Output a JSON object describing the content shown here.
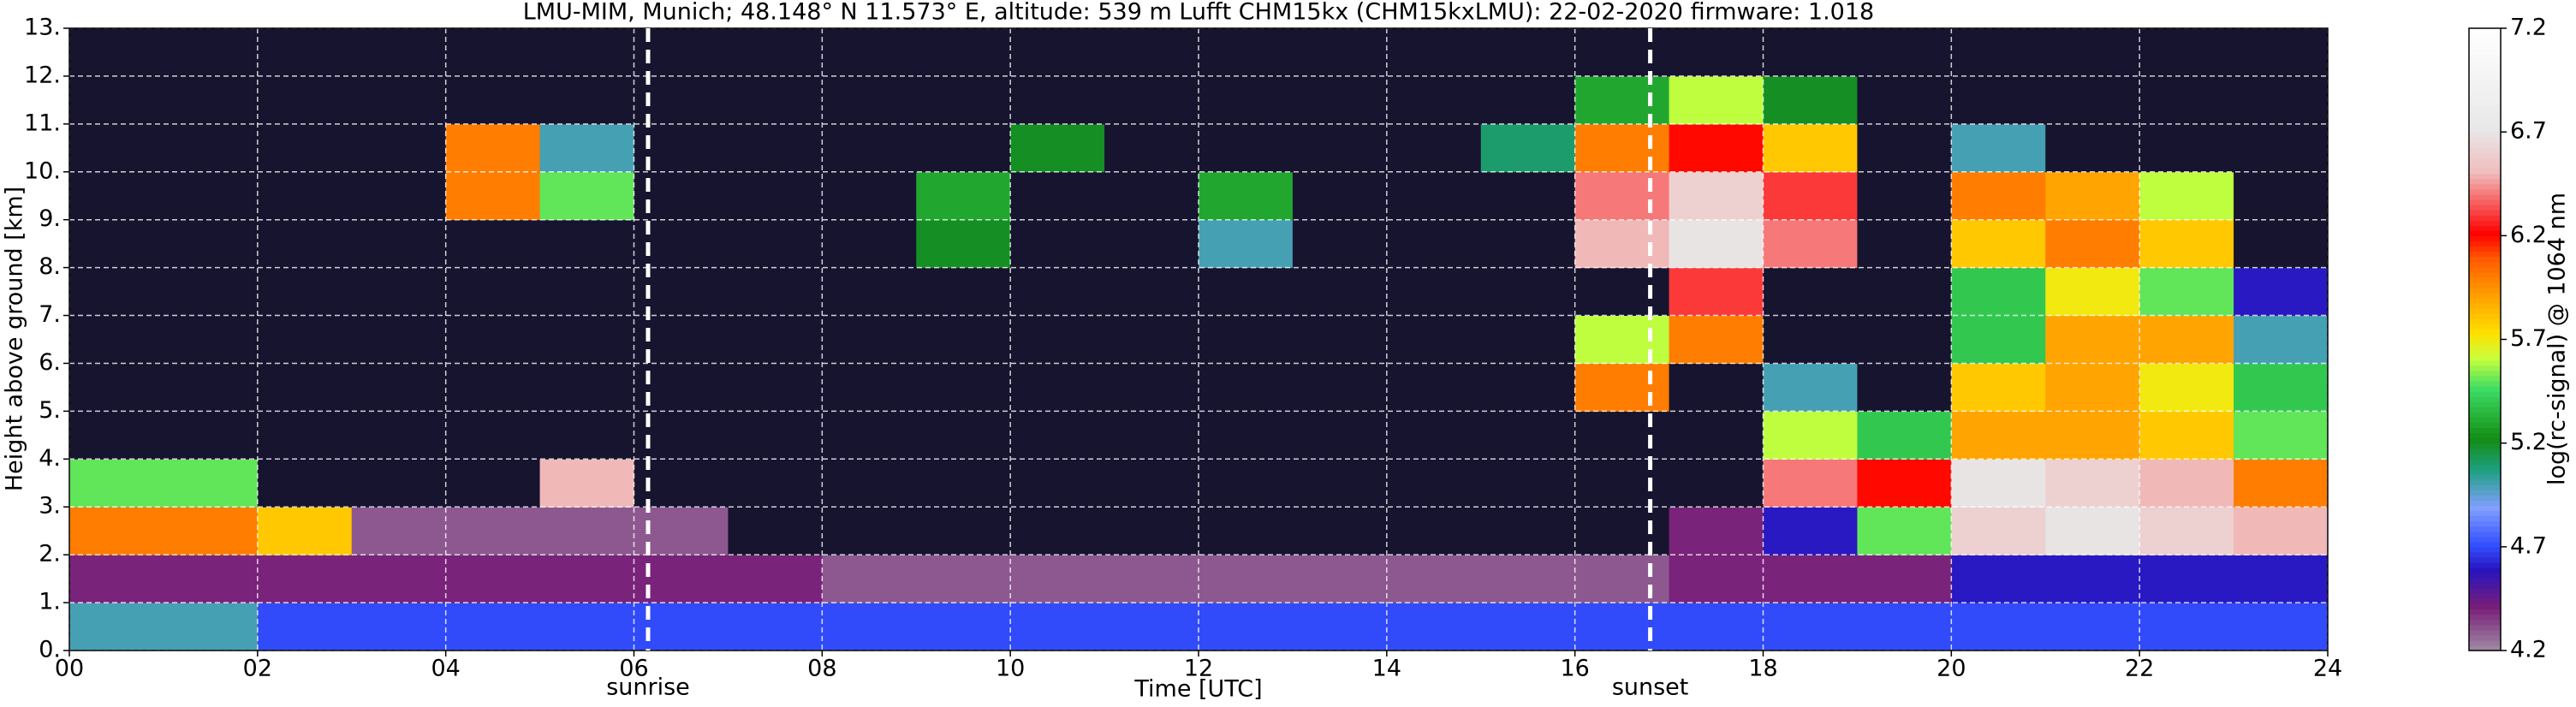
{
  "chart_data": {
    "type": "heatmap",
    "title": "LMU-MIM, Munich; 48.148° N 11.573° E, altitude: 539 m    Lufft CHM15kx (CHM15kxLMU): 22-02-2020    firmware: 1.018",
    "xlabel": "Time [UTC]",
    "ylabel": "Height above ground [km]",
    "colorbar_label": "log(rc-signal) @ 1064 nm",
    "xlim": [
      0,
      24
    ],
    "ylim": [
      0,
      13
    ],
    "clim": [
      4.2,
      7.2
    ],
    "xticks": [
      {
        "value": 0,
        "label": "00"
      },
      {
        "value": 2,
        "label": "02"
      },
      {
        "value": 4,
        "label": "04"
      },
      {
        "value": 6,
        "label": "06"
      },
      {
        "value": 8,
        "label": "08"
      },
      10,
      12,
      14,
      16,
      18,
      20,
      22,
      24
    ],
    "yticks": [
      {
        "value": 0,
        "label": "0."
      },
      {
        "value": 1,
        "label": "1."
      },
      {
        "value": 2,
        "label": "2."
      },
      {
        "value": 3,
        "label": "3."
      },
      {
        "value": 4,
        "label": "4."
      },
      {
        "value": 5,
        "label": "5."
      },
      {
        "value": 6,
        "label": "6."
      },
      {
        "value": 7,
        "label": "7."
      },
      {
        "value": 8,
        "label": "8."
      },
      {
        "value": 9,
        "label": "9."
      },
      {
        "value": 10,
        "label": "10."
      },
      {
        "value": 11,
        "label": "11."
      },
      {
        "value": 12,
        "label": "12."
      },
      {
        "value": 13,
        "label": "13."
      }
    ],
    "cticks": [
      4.2,
      4.7,
      5.2,
      5.7,
      6.2,
      6.7,
      7.2
    ],
    "grid": true,
    "annotations": [
      {
        "text": "sunrise",
        "x": 6.15
      },
      {
        "text": "sunset",
        "x": 16.8
      }
    ],
    "xbins": [
      0,
      1,
      2,
      3,
      4,
      5,
      6,
      7,
      8,
      9,
      10,
      11,
      12,
      13,
      14,
      15,
      16,
      17,
      18,
      19,
      20,
      21,
      22,
      23,
      24
    ],
    "ybins": [
      0,
      1,
      2,
      3,
      4,
      5,
      6,
      7,
      8,
      9,
      10,
      11,
      12,
      13
    ],
    "z": [
      [
        5.0,
        5.0,
        4.7,
        4.7,
        4.7,
        4.7,
        4.7,
        4.7,
        4.7,
        4.7,
        4.7,
        4.7,
        4.7,
        4.7,
        4.7,
        4.7,
        4.7,
        4.7,
        4.7,
        4.7,
        4.7,
        4.7,
        4.7,
        4.7
      ],
      [
        4.4,
        4.4,
        4.4,
        4.4,
        4.4,
        4.4,
        4.4,
        4.4,
        4.3,
        4.3,
        4.3,
        4.3,
        4.3,
        4.3,
        4.3,
        4.3,
        4.3,
        4.4,
        4.4,
        4.4,
        4.6,
        4.6,
        4.6,
        4.6
      ],
      [
        6.0,
        6.0,
        5.8,
        4.3,
        4.3,
        4.3,
        4.3,
        4.1,
        4.1,
        4.1,
        4.1,
        4.1,
        4.1,
        4.1,
        4.1,
        4.1,
        4.1,
        4.4,
        4.6,
        5.5,
        6.6,
        6.7,
        6.6,
        6.5
      ],
      [
        5.5,
        5.5,
        4.1,
        4.1,
        4.1,
        6.5,
        4.1,
        4.1,
        4.1,
        4.1,
        4.1,
        4.1,
        4.1,
        4.1,
        4.1,
        4.1,
        4.1,
        4.1,
        6.4,
        6.2,
        6.7,
        6.6,
        6.5,
        6.0
      ],
      [
        4.1,
        4.1,
        4.1,
        4.1,
        4.1,
        4.1,
        4.1,
        4.1,
        4.1,
        4.1,
        4.1,
        4.1,
        4.1,
        4.1,
        4.1,
        4.1,
        4.1,
        4.1,
        5.6,
        5.4,
        5.9,
        5.9,
        5.8,
        5.5
      ],
      [
        4.1,
        4.1,
        4.1,
        4.1,
        4.1,
        4.1,
        4.1,
        4.1,
        4.1,
        4.1,
        4.1,
        4.1,
        4.1,
        4.1,
        4.1,
        4.1,
        6.0,
        4.1,
        5.0,
        4.1,
        5.8,
        5.9,
        5.7,
        5.4
      ],
      [
        4.1,
        4.1,
        4.1,
        4.1,
        4.1,
        4.1,
        4.1,
        4.1,
        4.1,
        4.1,
        4.1,
        4.1,
        4.1,
        4.1,
        4.1,
        4.1,
        5.6,
        6.0,
        4.1,
        4.1,
        5.4,
        5.9,
        5.9,
        5.0
      ],
      [
        4.1,
        4.1,
        4.1,
        4.1,
        4.1,
        4.1,
        4.1,
        4.1,
        4.1,
        4.1,
        4.1,
        4.1,
        4.1,
        4.1,
        4.1,
        4.1,
        4.1,
        6.3,
        4.1,
        4.1,
        5.4,
        5.7,
        5.5,
        4.6
      ],
      [
        4.1,
        4.1,
        4.1,
        4.1,
        4.1,
        4.1,
        4.1,
        4.1,
        4.1,
        5.2,
        4.1,
        4.1,
        5.0,
        4.1,
        4.1,
        4.1,
        6.5,
        6.7,
        6.4,
        4.1,
        5.8,
        6.0,
        5.8,
        4.1
      ],
      [
        4.1,
        4.1,
        4.1,
        4.1,
        6.0,
        5.5,
        4.1,
        4.1,
        4.1,
        5.3,
        4.1,
        4.1,
        5.3,
        4.1,
        4.1,
        4.1,
        6.4,
        6.6,
        6.3,
        4.1,
        6.0,
        5.9,
        5.6,
        4.1
      ],
      [
        4.1,
        4.1,
        4.1,
        4.1,
        6.0,
        5.0,
        4.1,
        4.1,
        4.1,
        4.1,
        5.2,
        4.1,
        4.1,
        4.1,
        4.1,
        5.1,
        6.0,
        6.2,
        5.8,
        4.1,
        5.0,
        4.1,
        4.1,
        4.1
      ],
      [
        4.1,
        4.1,
        4.1,
        4.1,
        4.1,
        4.1,
        4.1,
        4.1,
        4.1,
        4.1,
        4.1,
        4.1,
        4.1,
        4.1,
        4.1,
        4.1,
        5.3,
        5.6,
        5.2,
        4.1,
        4.1,
        4.1,
        4.1,
        4.1
      ],
      [
        4.1,
        4.1,
        4.1,
        4.1,
        4.1,
        4.1,
        4.1,
        4.1,
        4.1,
        4.1,
        4.1,
        4.1,
        4.1,
        4.1,
        4.1,
        4.1,
        4.1,
        4.1,
        4.1,
        4.1,
        4.1,
        4.1,
        4.1,
        4.1
      ]
    ]
  }
}
